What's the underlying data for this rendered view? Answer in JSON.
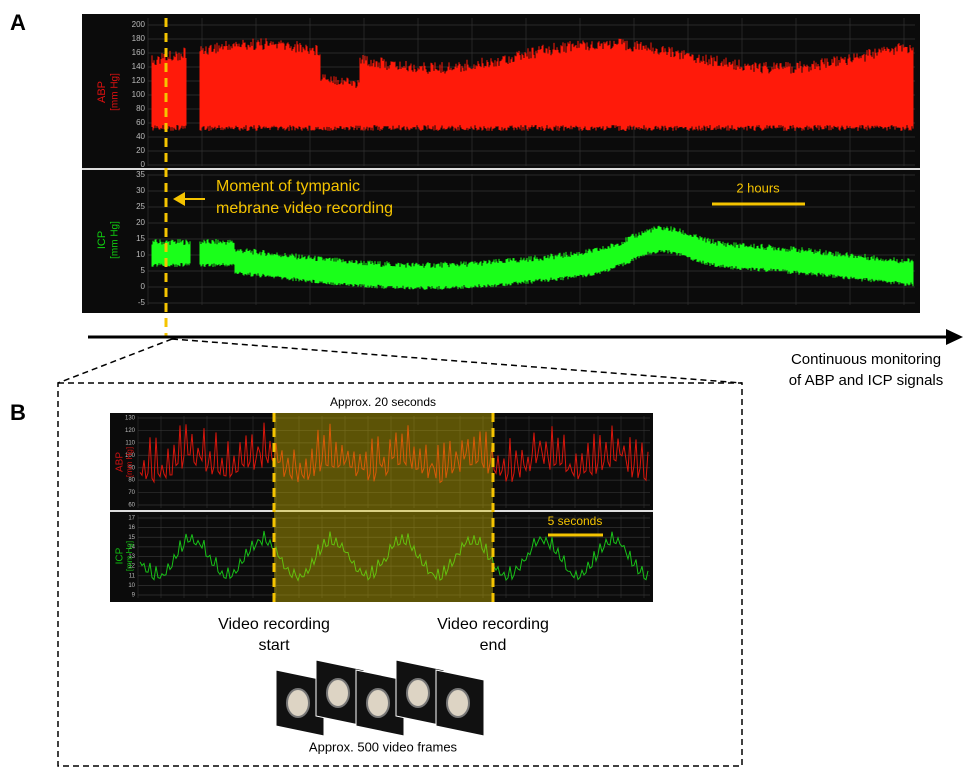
{
  "panel_a": {
    "label": "A",
    "abp_label": [
      "ABP",
      "[mm Hg]"
    ],
    "icp_label": [
      "ICP",
      "[mm Hg]"
    ],
    "abp_ticks": [
      0,
      20,
      40,
      60,
      80,
      100,
      120,
      140,
      160,
      180,
      200
    ],
    "icp_ticks": [
      -5,
      0,
      5,
      10,
      15,
      20,
      25,
      30,
      35
    ],
    "annotation": [
      "Moment of tympanic",
      "mebrane video recording"
    ],
    "scale_bar": "2 hours"
  },
  "timeline": [
    "Continuous monitoring",
    "of ABP and ICP signals"
  ],
  "panel_b": {
    "label": "B",
    "window": "Approx. 20 seconds",
    "abp_label": [
      "ABP",
      "[mm Hg]"
    ],
    "icp_label": [
      "ICP",
      "[mm Hg]"
    ],
    "abp_ticks": [
      60,
      70,
      80,
      90,
      100,
      110,
      120,
      130
    ],
    "icp_ticks": [
      9,
      10,
      11,
      12,
      13,
      14,
      15,
      16,
      17
    ],
    "scale_bar": "5 seconds",
    "start": [
      "Video recording",
      "start"
    ],
    "end": [
      "Video recording",
      "end"
    ],
    "frames": "Approx. 500 video frames"
  }
}
